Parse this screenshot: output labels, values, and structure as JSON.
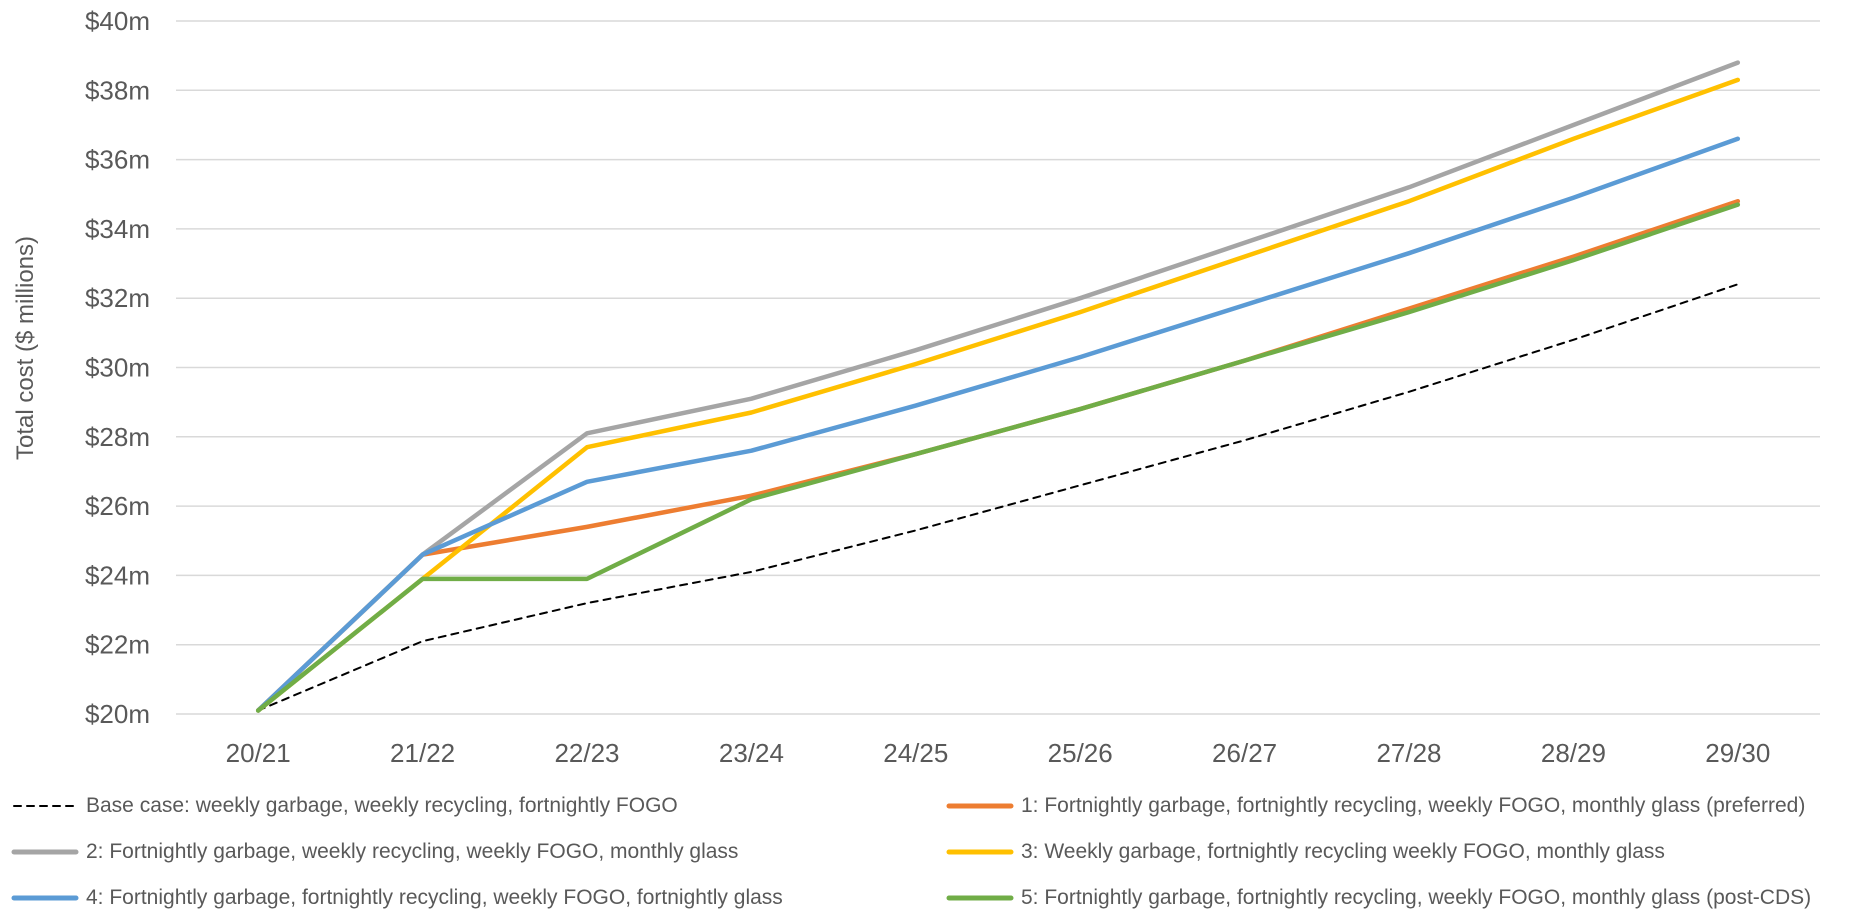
{
  "chart_data": {
    "type": "line",
    "title": "",
    "xlabel": "",
    "ylabel": "Total cost ($ millions)",
    "categories": [
      "20/21",
      "21/22",
      "22/23",
      "23/24",
      "24/25",
      "25/26",
      "26/27",
      "27/28",
      "28/29",
      "29/30"
    ],
    "ylim": [
      20,
      40
    ],
    "yticks": [
      20,
      22,
      24,
      26,
      28,
      30,
      32,
      34,
      36,
      38,
      40
    ],
    "ytick_labels": [
      "$20m",
      "$22m",
      "$24m",
      "$26m",
      "$28m",
      "$30m",
      "$32m",
      "$34m",
      "$36m",
      "$38m",
      "$40m"
    ],
    "grid": true,
    "legend_position": "bottom",
    "series": [
      {
        "name": "Base case: weekly garbage, weekly recycling, fortnightly FOGO",
        "color": "#000000",
        "dashed": true,
        "values": [
          20.1,
          22.1,
          23.2,
          24.1,
          25.3,
          26.6,
          27.9,
          29.3,
          30.8,
          32.4
        ]
      },
      {
        "name": "1: Fortnightly garbage, fortnightly recycling, weekly FOGO, monthly glass (preferred)",
        "color": "#ED7D31",
        "dashed": false,
        "values": [
          20.1,
          24.6,
          25.4,
          26.3,
          27.5,
          28.8,
          30.2,
          31.7,
          33.2,
          34.8
        ]
      },
      {
        "name": "2: Fortnightly garbage, weekly recycling, weekly FOGO, monthly glass",
        "color": "#A5A5A5",
        "dashed": false,
        "values": [
          20.1,
          24.6,
          28.1,
          29.1,
          30.5,
          32.0,
          33.6,
          35.2,
          37.0,
          38.8
        ]
      },
      {
        "name": "3: Weekly garbage, fortnightly recycling weekly FOGO, monthly glass",
        "color": "#FFC000",
        "dashed": false,
        "values": [
          20.1,
          23.9,
          27.7,
          28.7,
          30.1,
          31.6,
          33.2,
          34.8,
          36.6,
          38.3
        ]
      },
      {
        "name": "4: Fortnightly garbage, fortnightly recycling, weekly FOGO, fortnightly glass",
        "color": "#5B9BD5",
        "dashed": false,
        "values": [
          20.1,
          24.6,
          26.7,
          27.6,
          28.9,
          30.3,
          31.8,
          33.3,
          34.9,
          36.6
        ]
      },
      {
        "name": "5: Fortnightly garbage, fortnightly recycling, weekly FOGO, monthly glass (post-CDS)",
        "color": "#70AD47",
        "dashed": false,
        "values": [
          20.1,
          23.9,
          23.9,
          26.2,
          27.5,
          28.8,
          30.2,
          31.6,
          33.1,
          34.7
        ]
      }
    ]
  }
}
